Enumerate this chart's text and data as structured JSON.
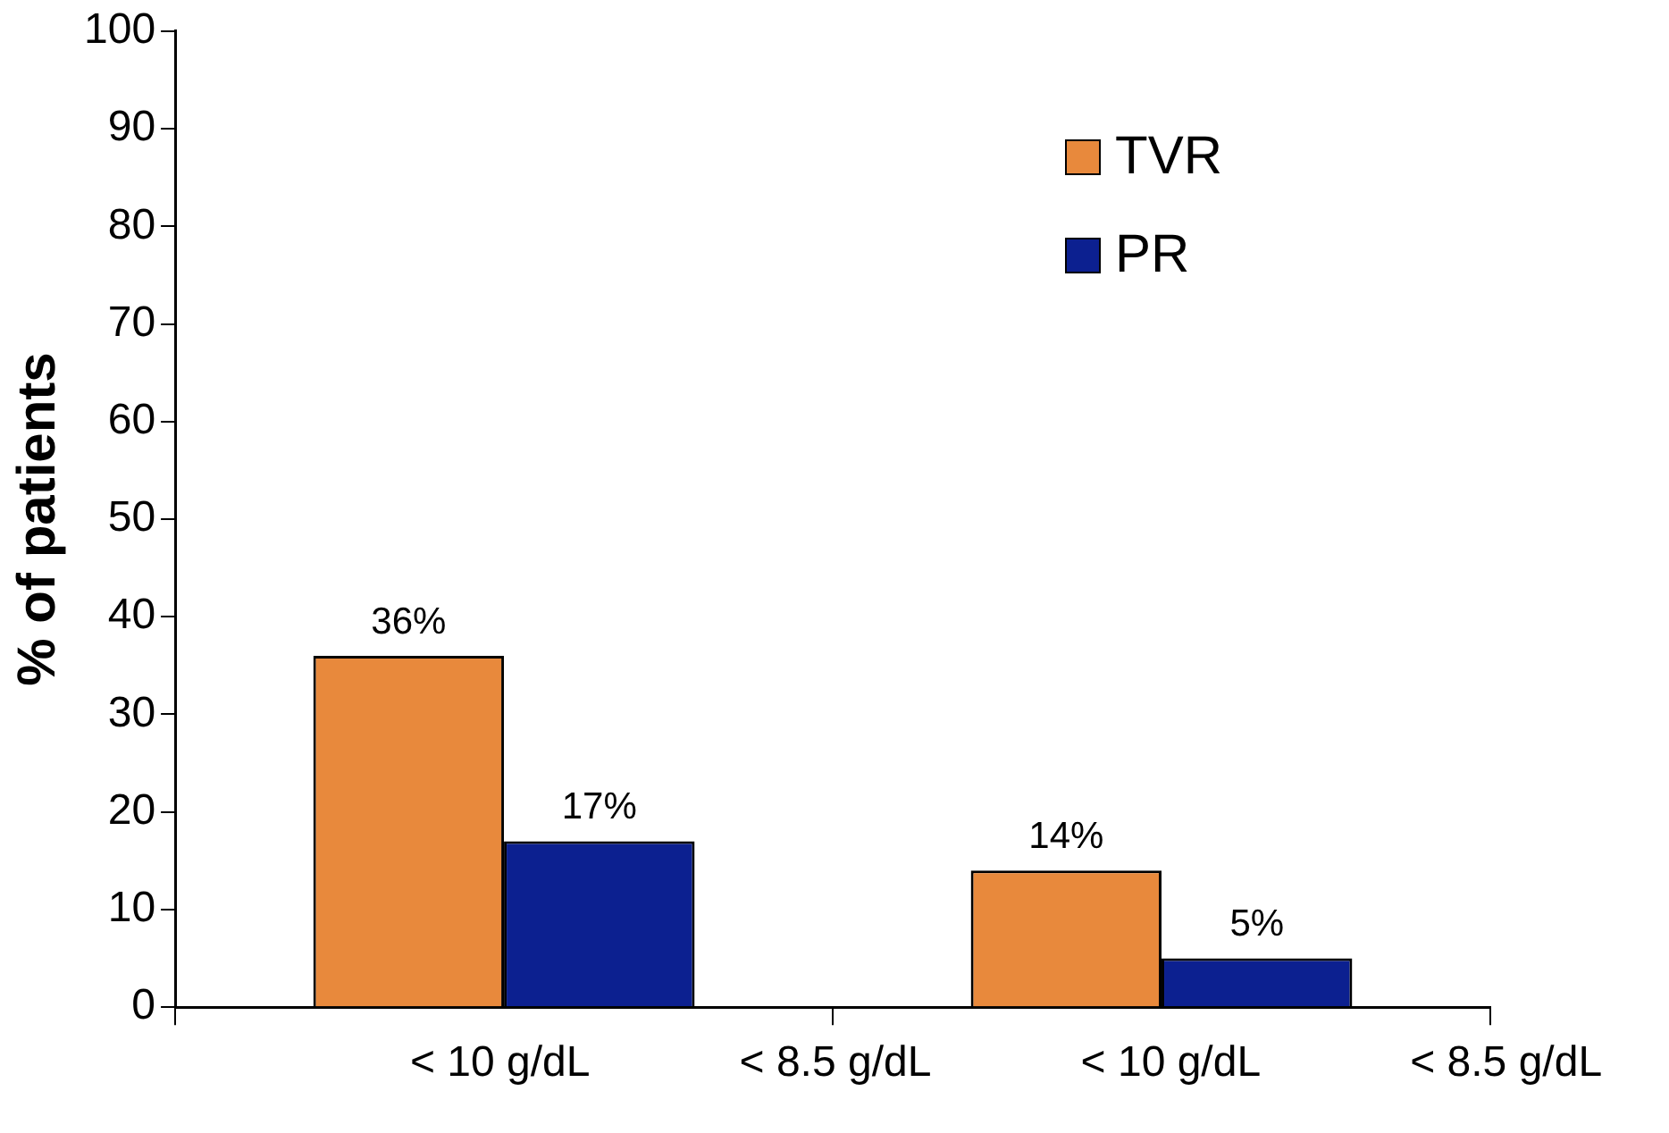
{
  "chart_data": {
    "type": "bar",
    "ylabel": "% of patients",
    "categories": [
      null,
      null
    ],
    "series": [
      {
        "name": "TVR",
        "color": "#e8893c",
        "values": [
          36,
          14
        ],
        "value_labels": [
          "36%",
          "14%"
        ]
      },
      {
        "name": "PR",
        "color": "#0c2090",
        "values": [
          17,
          5
        ],
        "value_labels": [
          "17%",
          "5%"
        ]
      }
    ],
    "ylim": [
      0,
      100
    ],
    "yticks": [
      0,
      10,
      20,
      30,
      40,
      50,
      60,
      70,
      80,
      90,
      100
    ],
    "grid": false,
    "legend": "top right",
    "annotations": [
      "< 10 g/dL",
      "< 8.5 g/dL",
      "< 10 g/dL",
      "< 8.5 g/dL"
    ]
  }
}
